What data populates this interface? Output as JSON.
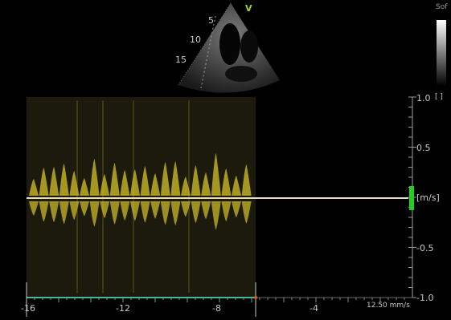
{
  "echo_view": {
    "orientation_marker": "V",
    "depth_labels": [
      "5",
      "10",
      "15"
    ],
    "marker_color": "#9ad23c"
  },
  "grayscale_map": {
    "label": "Sof"
  },
  "doppler": {
    "velocity_unit": "[m/s]",
    "velocity_ticks": [
      "1.0",
      "0.5",
      "-0.5",
      "-1.0"
    ],
    "time_ticks": [
      "-16",
      "-12",
      "-8",
      "-4"
    ],
    "sweep_speed": "12.50 mm/s",
    "spectrum_color": "#d4c22a",
    "baseline_color": "#e8dcc0",
    "timeline_color": "#44b89a",
    "indicator_color": "#22d022"
  }
}
